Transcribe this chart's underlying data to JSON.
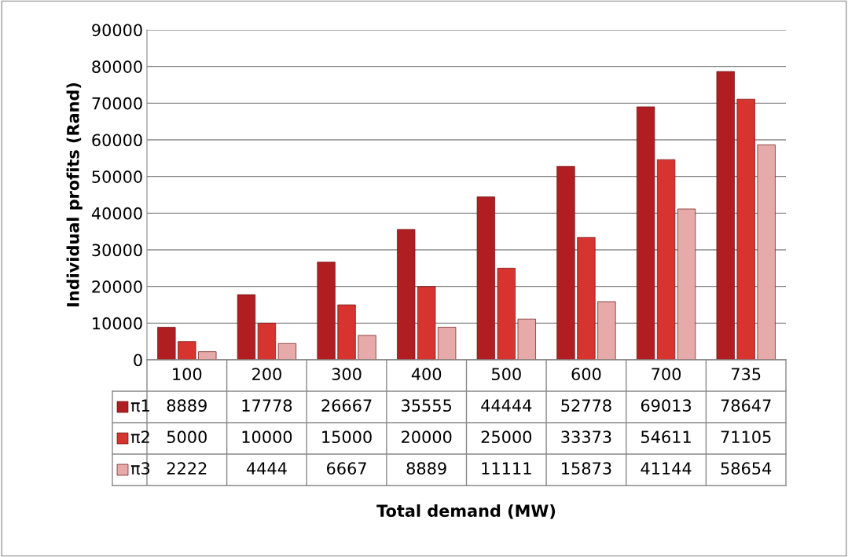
{
  "chart_data": {
    "type": "bar",
    "annotations": [
      "Total demand (MW)"
    ],
    "ylabel": "Individual profits (Rand)",
    "categories": [
      "100",
      "200",
      "300",
      "400",
      "500",
      "600",
      "700",
      "735"
    ],
    "series": [
      {
        "name": "π1",
        "color": "#b01e22",
        "values": [
          8889,
          17778,
          26667,
          35555,
          44444,
          52778,
          69013,
          78647
        ]
      },
      {
        "name": "π2",
        "color": "#d7332f",
        "values": [
          5000,
          10000,
          15000,
          20000,
          25000,
          33373,
          54611,
          71105
        ]
      },
      {
        "name": "π3",
        "color": "#e6aaa8",
        "values": [
          2222,
          4444,
          6667,
          8889,
          11111,
          15873,
          41144,
          58654
        ]
      }
    ],
    "ylim": [
      0,
      90000
    ],
    "yticks": [
      0,
      10000,
      20000,
      30000,
      40000,
      50000,
      60000,
      70000,
      80000,
      90000
    ],
    "grid": "y",
    "data_labels": true,
    "legend": "bottom"
  }
}
